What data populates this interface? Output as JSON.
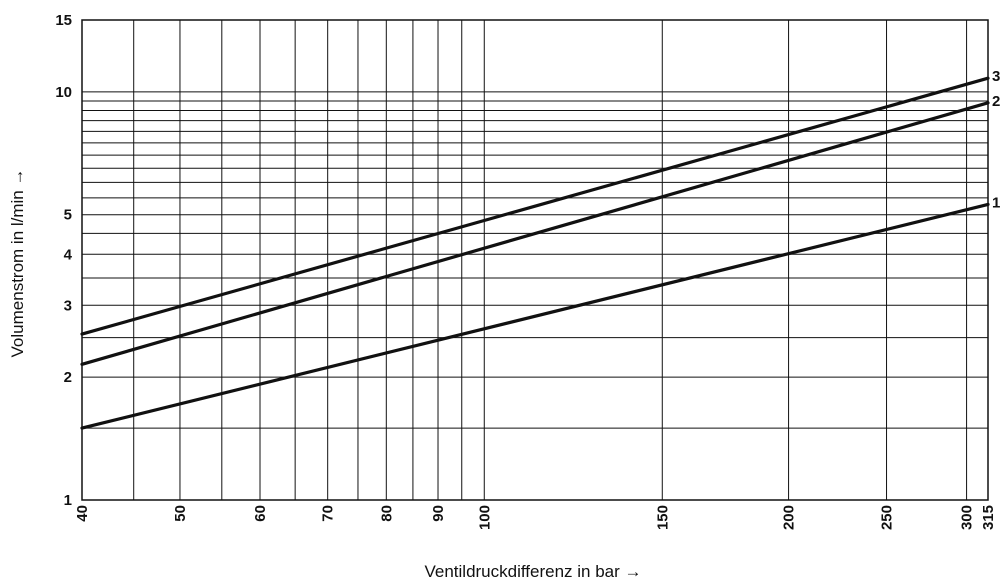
{
  "chart_data": {
    "type": "line",
    "xlabel": "Ventildruckdifferenz in bar →",
    "ylabel": "Volumenstrom in l/min →",
    "x_scale": "log",
    "y_scale": "log",
    "xlim": [
      40,
      315
    ],
    "ylim": [
      1,
      15
    ],
    "grid": true,
    "x_ticks": [
      40,
      50,
      60,
      70,
      80,
      90,
      100,
      150,
      200,
      250,
      300,
      315
    ],
    "x_tick_labels": [
      "40",
      "50",
      "60",
      "70",
      "80",
      "90",
      "100",
      "150",
      "200",
      "250",
      "300",
      "315"
    ],
    "y_ticks": [
      1,
      2,
      3,
      4,
      5,
      10,
      15
    ],
    "y_tick_labels": [
      "1",
      "2",
      "3",
      "4",
      "5",
      "10",
      "15"
    ],
    "series": [
      {
        "name": "1",
        "x": [
          40,
          315
        ],
        "y": [
          1.5,
          5.3
        ]
      },
      {
        "name": "2",
        "x": [
          40,
          315
        ],
        "y": [
          2.15,
          9.4
        ]
      },
      {
        "name": "3",
        "x": [
          40,
          315
        ],
        "y": [
          2.55,
          10.8
        ]
      }
    ]
  },
  "colors": {
    "line": "#111111",
    "grid": "#111111",
    "background": "#ffffff"
  }
}
